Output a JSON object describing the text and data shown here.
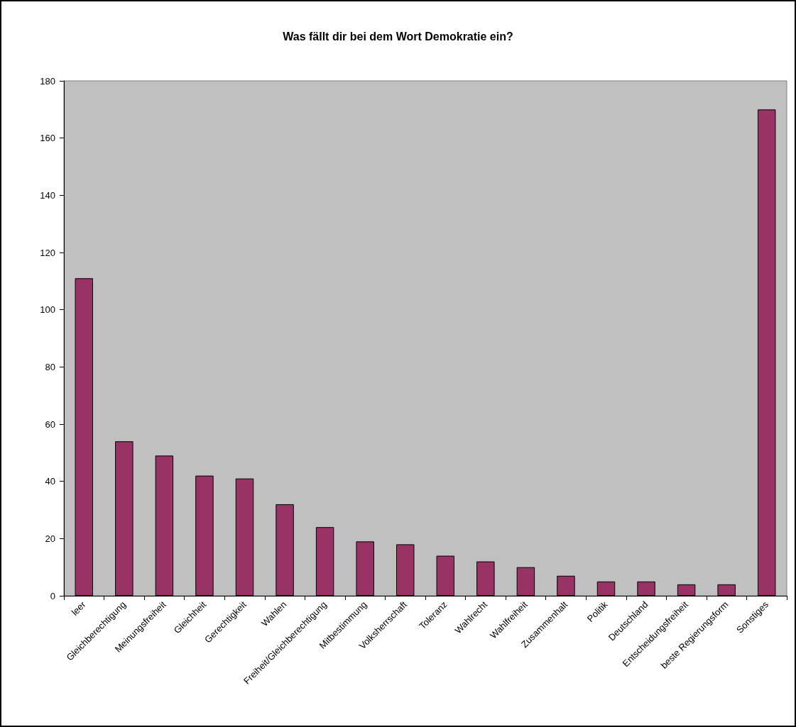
{
  "chart_data": {
    "type": "bar",
    "title": "Was fällt dir bei dem Wort Demokratie ein?",
    "categories": [
      "leer",
      "Gleichberechtigung",
      "Meinungsfreiheit",
      "Gleichheit",
      "Gerechtigkeit",
      "Wahlen",
      "Freiheit/Gleichberechtigung",
      "Mitbestimmung",
      "Volksherrschaft",
      "Toleranz",
      "Wahlrecht",
      "Wahlfreiheit",
      "Zusammenhalt",
      "Politik",
      "Deutschland",
      "Entscheidungsfreiheit",
      "beste Regierungsform",
      "Sonstiges"
    ],
    "values": [
      111,
      54,
      49,
      42,
      41,
      32,
      24,
      19,
      18,
      14,
      12,
      10,
      7,
      5,
      5,
      4,
      4,
      170
    ],
    "color": "#993366",
    "ylim": [
      0,
      180
    ],
    "yticks": [
      0,
      20,
      40,
      60,
      80,
      100,
      120,
      140,
      160,
      180
    ],
    "grid": false
  }
}
